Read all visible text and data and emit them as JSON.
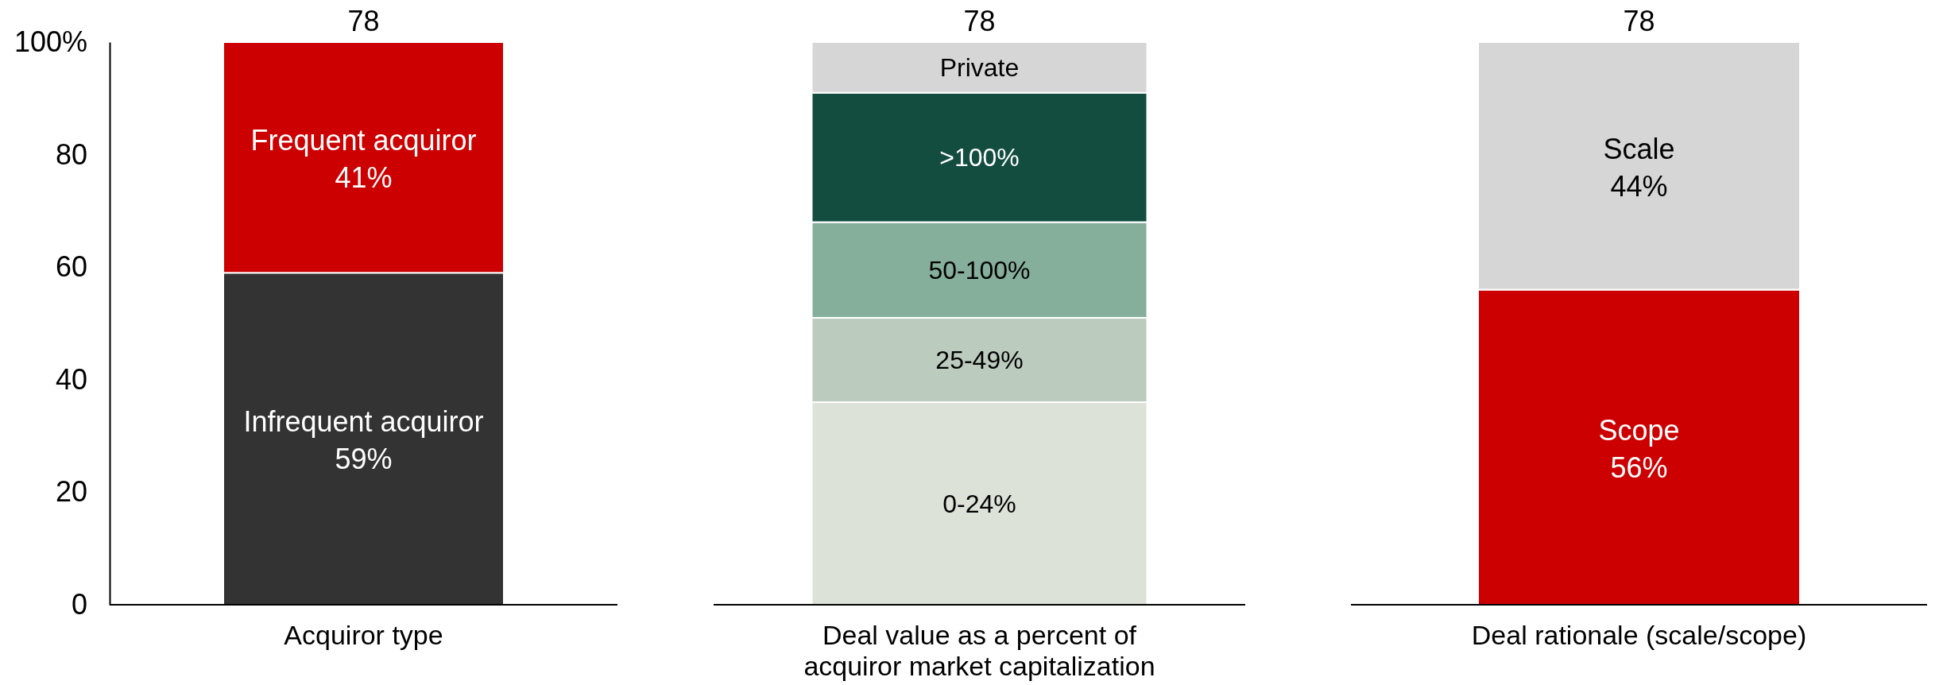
{
  "chart_data": [
    {
      "type": "bar",
      "stacked": true,
      "categories": [
        "Acquiror type"
      ],
      "ylim": [
        0,
        100
      ],
      "yticks": [
        0,
        20,
        40,
        60,
        80,
        {
          "value": 100,
          "label": "100%"
        }
      ],
      "annotations": [
        "78"
      ],
      "series": [
        {
          "name": "Infrequent acquiror",
          "color": "#333333",
          "values": [
            59
          ],
          "value_labels": [
            "59%"
          ]
        },
        {
          "name": "Frequent acquiror",
          "color": "#cc0000",
          "values": [
            41
          ],
          "value_labels": [
            "41%"
          ]
        }
      ]
    },
    {
      "type": "bar",
      "stacked": true,
      "categories": [
        "Deal value as a percent of acquiror market capitalization"
      ],
      "ylim": [
        0,
        100
      ],
      "tick_labels": "x",
      "annotations": [
        "78"
      ],
      "series": [
        {
          "name": "0-24%",
          "color": "#dce2d8",
          "values": [
            36
          ]
        },
        {
          "name": "25-49%",
          "color": "#bbcbbd",
          "values": [
            15
          ]
        },
        {
          "name": "50-100%",
          "color": "#85ae9b",
          "values": [
            17
          ]
        },
        {
          "name": ">100%",
          "color": "#124d40",
          "values": [
            23
          ]
        },
        {
          "name": "Private",
          "color": "#d6d6d6",
          "values": [
            9
          ]
        }
      ]
    },
    {
      "type": "bar",
      "stacked": true,
      "categories": [
        "Deal rationale (scale/scope)"
      ],
      "ylim": [
        0,
        100
      ],
      "tick_labels": "x",
      "annotations": [
        "78"
      ],
      "series": [
        {
          "name": "Scope",
          "color": "#cc0000",
          "values": [
            56
          ],
          "value_labels": [
            "56%"
          ]
        },
        {
          "name": "Scale",
          "color": "#d6d6d6",
          "values": [
            44
          ],
          "value_labels": [
            "44%"
          ]
        }
      ]
    }
  ]
}
